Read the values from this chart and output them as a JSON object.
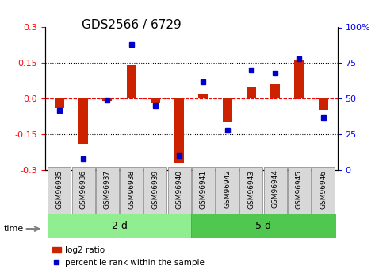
{
  "title": "GDS2566 / 6729",
  "samples": [
    "GSM96935",
    "GSM96936",
    "GSM96937",
    "GSM96938",
    "GSM96939",
    "GSM96940",
    "GSM96941",
    "GSM96942",
    "GSM96943",
    "GSM96944",
    "GSM96945",
    "GSM96946"
  ],
  "log2_ratio": [
    -0.04,
    -0.19,
    -0.01,
    0.14,
    -0.02,
    -0.27,
    0.02,
    -0.1,
    0.05,
    0.06,
    0.16,
    -0.05
  ],
  "percentile_rank": [
    42,
    8,
    49,
    88,
    45,
    10,
    62,
    28,
    70,
    68,
    78,
    37
  ],
  "groups": [
    {
      "label": "2 d",
      "start": 0,
      "end": 6,
      "color": "#90ee90"
    },
    {
      "label": "5 d",
      "start": 6,
      "end": 12,
      "color": "#50c850"
    }
  ],
  "ylim_left": [
    -0.3,
    0.3
  ],
  "ylim_right": [
    0,
    100
  ],
  "yticks_left": [
    -0.3,
    -0.15,
    0.0,
    0.15,
    0.3
  ],
  "yticks_right": [
    0,
    25,
    50,
    75,
    100
  ],
  "hlines": [
    -0.15,
    0.0,
    0.15
  ],
  "bar_color": "#cc2200",
  "dot_color": "#0000cc",
  "background_color": "#ffffff",
  "axis_bg": "#ffffff",
  "time_label": "time",
  "legend_bar_label": "log2 ratio",
  "legend_dot_label": "percentile rank within the sample"
}
